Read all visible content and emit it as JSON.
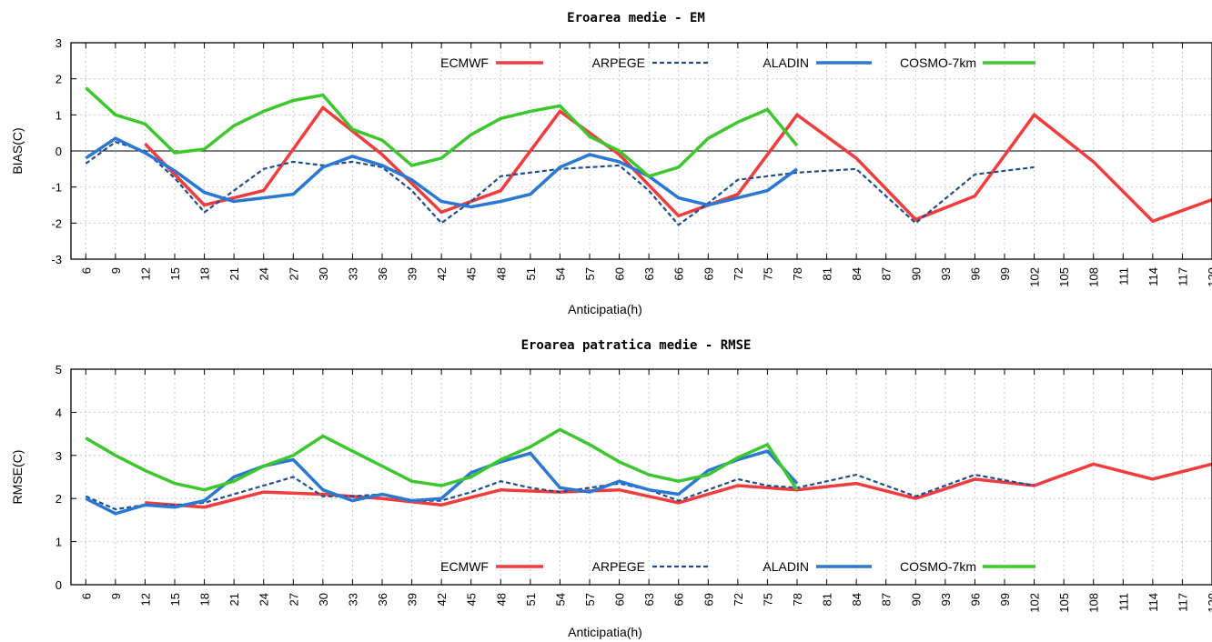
{
  "chart_data": [
    {
      "type": "line",
      "title": "Eroarea medie - EM",
      "xlabel": "Anticipatia(h)",
      "ylabel": "BIAS(C)",
      "ylim": [
        -3,
        3
      ],
      "yticks": [
        "-3",
        "-2",
        "-1",
        "0",
        "1",
        "2",
        "3"
      ],
      "xticks": [
        "6",
        "9",
        "12",
        "15",
        "18",
        "21",
        "24",
        "27",
        "30",
        "33",
        "36",
        "39",
        "42",
        "45",
        "48",
        "51",
        "54",
        "57",
        "60",
        "63",
        "66",
        "69",
        "72",
        "75",
        "78",
        "81",
        "84",
        "87",
        "90",
        "93",
        "96",
        "99",
        "102",
        "105",
        "108",
        "111",
        "114",
        "117",
        "120"
      ],
      "zero_line": true,
      "grid": true,
      "legend_position": "top",
      "series": [
        {
          "name": "ECMWF",
          "color": "#f03c3c",
          "dash": "solid",
          "x": [
            12,
            18,
            24,
            30,
            36,
            42,
            48,
            54,
            60,
            66,
            72,
            78,
            84,
            90,
            96,
            102,
            108,
            114,
            120
          ],
          "y": [
            0.2,
            -1.5,
            -1.1,
            1.2,
            -0.1,
            -1.7,
            -1.1,
            1.1,
            -0.1,
            -1.8,
            -1.2,
            1.0,
            -0.2,
            -1.9,
            -1.25,
            1.0,
            -0.3,
            -1.95,
            -1.35
          ]
        },
        {
          "name": "ARPEGE",
          "color": "#1f4e8c",
          "dash": "dashed",
          "x": [
            6,
            9,
            12,
            15,
            18,
            21,
            24,
            27,
            30,
            33,
            36,
            39,
            42,
            45,
            48,
            51,
            54,
            57,
            60,
            63,
            66,
            69,
            72,
            75,
            78,
            84,
            90,
            96,
            102
          ],
          "y": [
            -0.35,
            0.25,
            0.0,
            -0.75,
            -1.7,
            -1.1,
            -0.5,
            -0.3,
            -0.4,
            -0.3,
            -0.45,
            -1.1,
            -2.0,
            -1.4,
            -0.7,
            -0.6,
            -0.5,
            -0.45,
            -0.4,
            -1.1,
            -2.05,
            -1.45,
            -0.8,
            -0.7,
            -0.6,
            -0.5,
            -2.0,
            -0.65,
            -0.45
          ]
        },
        {
          "name": "ALADIN",
          "color": "#2a78d2",
          "dash": "solid",
          "x": [
            6,
            9,
            12,
            15,
            18,
            21,
            24,
            27,
            30,
            33,
            36,
            39,
            42,
            45,
            48,
            51,
            54,
            57,
            60,
            63,
            66,
            69,
            72,
            75,
            78
          ],
          "y": [
            -0.2,
            0.35,
            -0.05,
            -0.55,
            -1.15,
            -1.4,
            -1.3,
            -1.2,
            -0.45,
            -0.15,
            -0.4,
            -0.8,
            -1.4,
            -1.55,
            -1.4,
            -1.2,
            -0.45,
            -0.1,
            -0.3,
            -0.7,
            -1.3,
            -1.5,
            -1.3,
            -1.1,
            -0.5
          ]
        },
        {
          "name": "COSMO-7km",
          "color": "#3cc82d",
          "dash": "solid",
          "x": [
            6,
            9,
            12,
            15,
            18,
            21,
            24,
            27,
            30,
            33,
            36,
            39,
            42,
            45,
            48,
            51,
            54,
            57,
            60,
            63,
            66,
            69,
            72,
            75,
            78
          ],
          "y": [
            1.75,
            1.0,
            0.75,
            -0.05,
            0.05,
            0.7,
            1.1,
            1.4,
            1.55,
            0.6,
            0.3,
            -0.4,
            -0.2,
            0.45,
            0.9,
            1.1,
            1.25,
            0.4,
            0.0,
            -0.7,
            -0.45,
            0.35,
            0.8,
            1.15,
            0.15
          ]
        }
      ]
    },
    {
      "type": "line",
      "title": "Eroarea patratica medie - RMSE",
      "xlabel": "Anticipatia(h)",
      "ylabel": "RMSE(C)",
      "ylim": [
        0,
        5
      ],
      "yticks": [
        "0",
        "1",
        "2",
        "3",
        "4",
        "5"
      ],
      "xticks": [
        "6",
        "9",
        "12",
        "15",
        "18",
        "21",
        "24",
        "27",
        "30",
        "33",
        "36",
        "39",
        "42",
        "45",
        "48",
        "51",
        "54",
        "57",
        "60",
        "63",
        "66",
        "69",
        "72",
        "75",
        "78",
        "81",
        "84",
        "87",
        "90",
        "93",
        "96",
        "99",
        "102",
        "105",
        "108",
        "111",
        "114",
        "117",
        "120"
      ],
      "zero_line": false,
      "grid": true,
      "legend_position": "bottom",
      "series": [
        {
          "name": "ECMWF",
          "color": "#f03c3c",
          "dash": "solid",
          "x": [
            12,
            18,
            24,
            30,
            36,
            42,
            48,
            54,
            60,
            66,
            72,
            78,
            84,
            90,
            96,
            102,
            108,
            114,
            120
          ],
          "y": [
            1.9,
            1.8,
            2.15,
            2.1,
            2.0,
            1.85,
            2.2,
            2.15,
            2.2,
            1.9,
            2.3,
            2.2,
            2.35,
            2.0,
            2.45,
            2.3,
            2.8,
            2.45,
            2.8
          ]
        },
        {
          "name": "ARPEGE",
          "color": "#1f4e8c",
          "dash": "dashed",
          "x": [
            6,
            9,
            12,
            15,
            18,
            21,
            24,
            27,
            30,
            33,
            36,
            39,
            42,
            45,
            48,
            51,
            54,
            57,
            60,
            63,
            66,
            69,
            72,
            75,
            78,
            84,
            90,
            96,
            102
          ],
          "y": [
            2.05,
            1.75,
            1.85,
            1.85,
            1.9,
            2.1,
            2.3,
            2.5,
            2.05,
            2.05,
            2.1,
            1.95,
            1.95,
            2.15,
            2.4,
            2.25,
            2.15,
            2.25,
            2.35,
            2.2,
            1.95,
            2.2,
            2.45,
            2.3,
            2.25,
            2.55,
            2.05,
            2.55,
            2.3
          ]
        },
        {
          "name": "ALADIN",
          "color": "#2a78d2",
          "dash": "solid",
          "x": [
            6,
            9,
            12,
            15,
            18,
            21,
            24,
            27,
            30,
            33,
            36,
            39,
            42,
            45,
            48,
            51,
            54,
            57,
            60,
            63,
            66,
            69,
            72,
            75,
            78
          ],
          "y": [
            2.0,
            1.65,
            1.85,
            1.8,
            1.95,
            2.5,
            2.75,
            2.9,
            2.2,
            1.95,
            2.1,
            1.95,
            2.0,
            2.6,
            2.85,
            3.05,
            2.25,
            2.15,
            2.4,
            2.2,
            2.1,
            2.65,
            2.9,
            3.1,
            2.35
          ]
        },
        {
          "name": "COSMO-7km",
          "color": "#3cc82d",
          "dash": "solid",
          "x": [
            6,
            9,
            12,
            15,
            18,
            21,
            24,
            27,
            30,
            33,
            36,
            39,
            42,
            45,
            48,
            51,
            54,
            57,
            60,
            63,
            66,
            69,
            72,
            75,
            78
          ],
          "y": [
            3.4,
            3.0,
            2.65,
            2.35,
            2.2,
            2.4,
            2.75,
            3.0,
            3.45,
            3.1,
            2.75,
            2.4,
            2.3,
            2.5,
            2.9,
            3.2,
            3.6,
            3.25,
            2.85,
            2.55,
            2.4,
            2.55,
            2.95,
            3.25,
            2.2
          ]
        }
      ]
    }
  ]
}
